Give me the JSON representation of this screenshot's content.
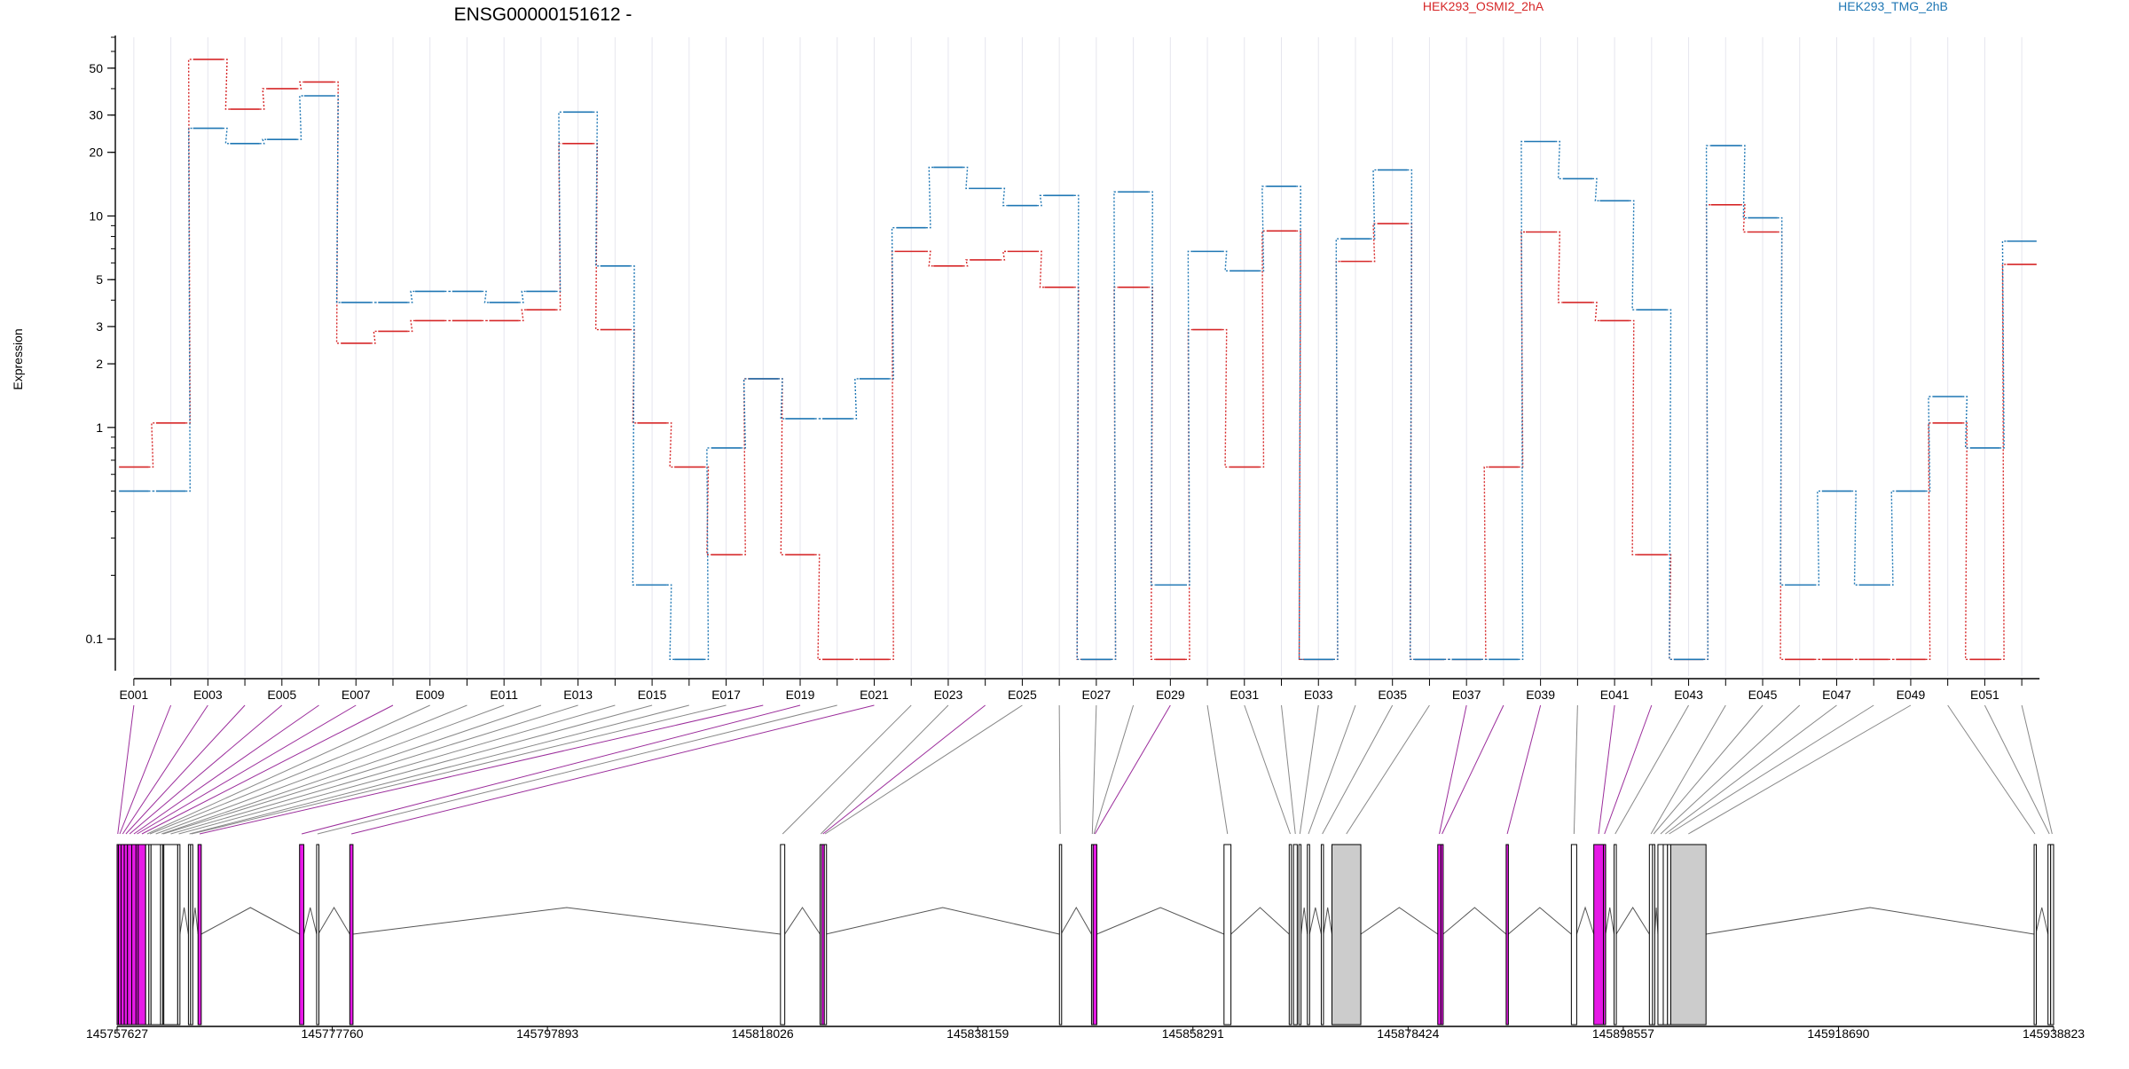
{
  "chart_data": {
    "type": "line",
    "title": "ENSG00000151612 -",
    "ylabel": "Expression",
    "yscale": "log",
    "ylim": [
      0.075,
      70
    ],
    "yticks": [
      0.1,
      1,
      2,
      3,
      5,
      10,
      20,
      30,
      50
    ],
    "ytick_labels": [
      "0.1",
      "1",
      "2",
      "3",
      "5",
      "10",
      "20",
      "30",
      "50"
    ],
    "exons": [
      "E001",
      "E002",
      "E003",
      "E004",
      "E005",
      "E006",
      "E007",
      "E008",
      "E009",
      "E010",
      "E011",
      "E012",
      "E013",
      "E014",
      "E015",
      "E016",
      "E017",
      "E018",
      "E019",
      "E020",
      "E021",
      "E022",
      "E023",
      "E024",
      "E025",
      "E026",
      "E027",
      "E028",
      "E029",
      "E030",
      "E031",
      "E032",
      "E033",
      "E034",
      "E035",
      "E036",
      "E037",
      "E038",
      "E039",
      "E040",
      "E041",
      "E042",
      "E043",
      "E044",
      "E045",
      "E046",
      "E047",
      "E048",
      "E049",
      "E050",
      "E051",
      "E052"
    ],
    "xtick_labels": [
      "E001",
      "E003",
      "E005",
      "E007",
      "E009",
      "E011",
      "E013",
      "E015",
      "E017",
      "E019",
      "E021",
      "E023",
      "E025",
      "E027",
      "E029",
      "E031",
      "E033",
      "E035",
      "E037",
      "E039",
      "E041",
      "E043",
      "E045",
      "E047",
      "E049",
      "E051"
    ],
    "series": [
      {
        "name": "HEK293_OSMI2_2hA",
        "color": "#d62728",
        "values": [
          0.65,
          1.05,
          55,
          32,
          40,
          43,
          2.5,
          2.85,
          3.2,
          3.2,
          3.2,
          3.6,
          22,
          2.9,
          1.05,
          0.65,
          0.25,
          1.7,
          0.25,
          0.08,
          0.08,
          6.8,
          5.8,
          6.2,
          6.8,
          4.6,
          0.08,
          4.6,
          0.08,
          2.9,
          0.65,
          8.5,
          0.08,
          6.1,
          9.2,
          0.08,
          0.08,
          0.65,
          8.4,
          3.9,
          3.2,
          0.25,
          0.08,
          11.3,
          8.4,
          0.08,
          0.08,
          0.08,
          0.08,
          1.05,
          0.08,
          5.9
        ]
      },
      {
        "name": "HEK293_TMG_2hB",
        "color": "#1f77b4",
        "values": [
          0.5,
          0.5,
          26,
          22,
          23,
          37,
          3.9,
          3.9,
          4.4,
          4.4,
          3.9,
          4.4,
          31,
          5.8,
          0.18,
          0.08,
          0.8,
          1.7,
          1.1,
          1.1,
          1.7,
          8.8,
          17,
          13.5,
          11.2,
          12.5,
          0.08,
          13,
          0.18,
          6.8,
          5.5,
          13.8,
          0.08,
          7.8,
          16.5,
          0.08,
          0.08,
          0.08,
          22.5,
          15,
          11.8,
          3.6,
          0.08,
          21.5,
          9.8,
          0.18,
          0.5,
          0.18,
          0.5,
          1.4,
          0.8,
          7.6
        ]
      }
    ],
    "coordinate_labels": [
      "145757627",
      "145777760",
      "145797893",
      "145818026",
      "145838159",
      "145858291",
      "145878424",
      "145898557",
      "145918690",
      "145938823"
    ],
    "gene_range": [
      145757627,
      145938823
    ],
    "exon_segments": [
      {
        "id": "E001",
        "start": 145757627,
        "end": 145757750,
        "highlight": true
      },
      {
        "id": "E002",
        "start": 145757750,
        "end": 145758000,
        "highlight": true
      },
      {
        "id": "E003",
        "start": 145758000,
        "end": 145758300,
        "highlight": true
      },
      {
        "id": "E004",
        "start": 145758300,
        "end": 145758600,
        "highlight": true
      },
      {
        "id": "E005",
        "start": 145758600,
        "end": 145759000,
        "highlight": true
      },
      {
        "id": "E006",
        "start": 145759000,
        "end": 145759400,
        "highlight": true
      },
      {
        "id": "E007",
        "start": 145759400,
        "end": 145759600,
        "highlight": true
      },
      {
        "id": "E008",
        "start": 145759600,
        "end": 145760300,
        "highlight": true
      },
      {
        "id": "E009",
        "start": 145760300,
        "end": 145760600,
        "highlight": false
      },
      {
        "id": "E010",
        "start": 145760600,
        "end": 145760800,
        "highlight": false
      },
      {
        "id": "E011",
        "start": 145760800,
        "end": 145761700,
        "highlight": false
      },
      {
        "id": "E012",
        "start": 145761700,
        "end": 145761900,
        "highlight": false
      },
      {
        "id": "E013",
        "start": 145761900,
        "end": 145762000,
        "highlight": false
      },
      {
        "id": "E014",
        "start": 145762000,
        "end": 145763300,
        "highlight": false
      },
      {
        "id": "E015",
        "start": 145763300,
        "end": 145763500,
        "highlight": false
      },
      {
        "id": "E016",
        "start": 145764300,
        "end": 145764500,
        "highlight": false
      },
      {
        "id": "E017",
        "start": 145764500,
        "end": 145764650,
        "highlight": false
      },
      {
        "id": "E018",
        "start": 145765200,
        "end": 145765500,
        "highlight": true
      },
      {
        "id": "E019",
        "start": 145774700,
        "end": 145775100,
        "highlight": true
      },
      {
        "id": "E020",
        "start": 145776300,
        "end": 145776450,
        "highlight": false
      },
      {
        "id": "E021",
        "start": 145779400,
        "end": 145779700,
        "highlight": true
      },
      {
        "id": "E022",
        "start": 145819700,
        "end": 145820100,
        "highlight": false
      },
      {
        "id": "E023",
        "start": 145823400,
        "end": 145823550,
        "highlight": false
      },
      {
        "id": "E024",
        "start": 145823550,
        "end": 145823800,
        "highlight": true
      },
      {
        "id": "E025",
        "start": 145823800,
        "end": 145823950,
        "highlight": false
      },
      {
        "id": "E026",
        "start": 145845800,
        "end": 145845950,
        "highlight": false
      },
      {
        "id": "E027",
        "start": 145848800,
        "end": 145848950,
        "highlight": false
      },
      {
        "id": "E028",
        "start": 145848950,
        "end": 145849100,
        "highlight": false
      },
      {
        "id": "E029",
        "start": 145848950,
        "end": 145849300,
        "highlight": true
      },
      {
        "id": "E030",
        "start": 145861200,
        "end": 145861850,
        "highlight": false
      },
      {
        "id": "E031",
        "start": 145867300,
        "end": 145867500,
        "highlight": false
      },
      {
        "id": "E032",
        "start": 145867700,
        "end": 145868050,
        "highlight": false
      },
      {
        "id": "E033",
        "start": 145868200,
        "end": 145868400,
        "highlight": false
      },
      {
        "id": "E034",
        "start": 145869000,
        "end": 145869200,
        "highlight": false
      },
      {
        "id": "E035",
        "start": 145870300,
        "end": 145870500,
        "highlight": false
      },
      {
        "id": "E036",
        "start": 145871300,
        "end": 145874000,
        "highlight": false
      },
      {
        "id": "E037",
        "start": 145881200,
        "end": 145881500,
        "highlight": true
      },
      {
        "id": "E038",
        "start": 145881500,
        "end": 145881700,
        "highlight": true
      },
      {
        "id": "E039",
        "start": 145887600,
        "end": 145887800,
        "highlight": true
      },
      {
        "id": "E040",
        "start": 145893700,
        "end": 145894200,
        "highlight": false
      },
      {
        "id": "E041",
        "start": 145895800,
        "end": 145896700,
        "highlight": true
      },
      {
        "id": "E042",
        "start": 145896700,
        "end": 145896900,
        "highlight": true
      },
      {
        "id": "E043",
        "start": 145897700,
        "end": 145897900,
        "highlight": false
      },
      {
        "id": "E044",
        "start": 145901000,
        "end": 145901300,
        "highlight": false
      },
      {
        "id": "E045",
        "start": 145901300,
        "end": 145901500,
        "highlight": false
      },
      {
        "id": "E046",
        "start": 145901800,
        "end": 145902300,
        "highlight": false
      },
      {
        "id": "E047",
        "start": 145902300,
        "end": 145902700,
        "highlight": false
      },
      {
        "id": "E048",
        "start": 145902700,
        "end": 145903000,
        "highlight": false
      },
      {
        "id": "E049",
        "start": 145903000,
        "end": 145906300,
        "highlight": false
      },
      {
        "id": "E050",
        "start": 145937000,
        "end": 145937150,
        "highlight": false
      },
      {
        "id": "E051",
        "start": 145938300,
        "end": 145938550,
        "highlight": false
      },
      {
        "id": "E052",
        "start": 145938550,
        "end": 145938823,
        "highlight": false
      }
    ],
    "colors": {
      "highlight": "#e619e6",
      "grey_fill": "#cccccc",
      "outline": "#000000",
      "link_grey": "#888888",
      "link_purple": "#9b2d9b"
    },
    "grid": true,
    "legend_placement": "top"
  }
}
